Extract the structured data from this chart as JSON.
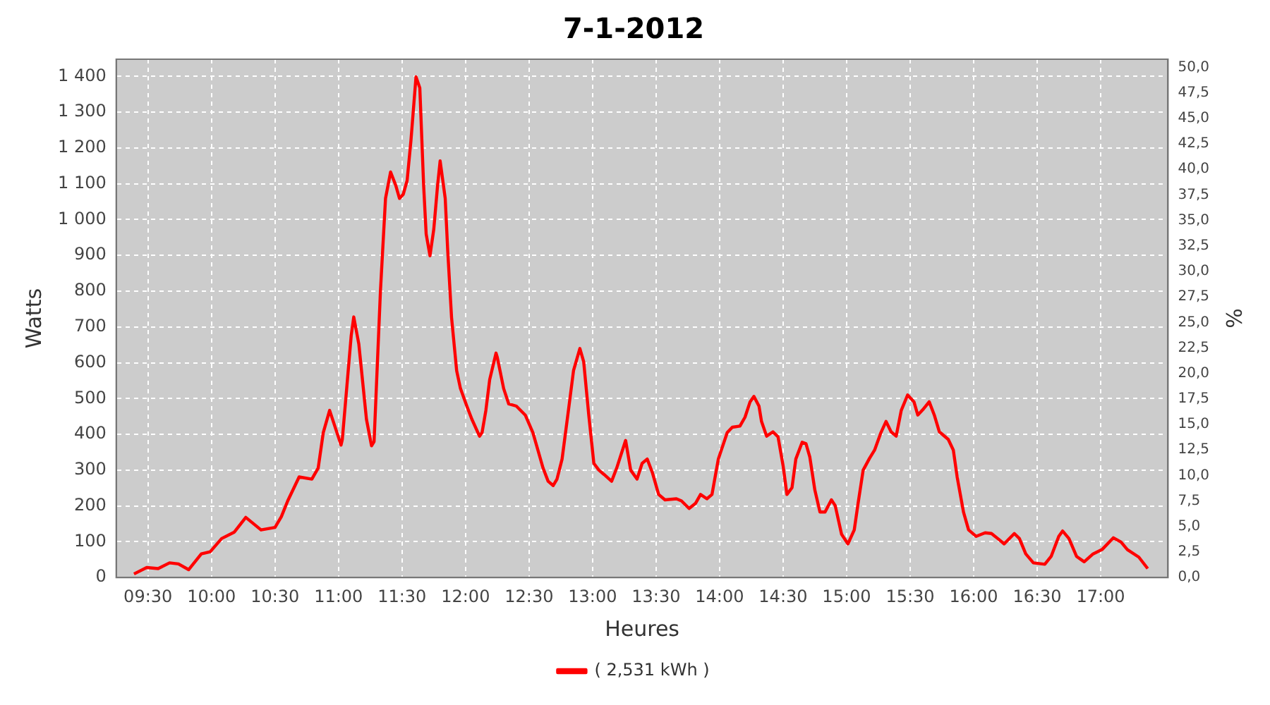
{
  "chart_data": {
    "type": "line",
    "title": "7-1-2012",
    "xlabel": "Heures",
    "ylabel": "Watts",
    "y2label": "%",
    "xlim": [
      9.25,
      17.53
    ],
    "xticks": [
      {
        "value": 9.5,
        "label": "09:30"
      },
      {
        "value": 10,
        "label": "10:00"
      },
      {
        "value": 10.5,
        "label": "10:30"
      },
      {
        "value": 11,
        "label": "11:00"
      },
      {
        "value": 11.5,
        "label": "11:30"
      },
      {
        "value": 12,
        "label": "12:00"
      },
      {
        "value": 12.5,
        "label": "12:30"
      },
      {
        "value": 13,
        "label": "13:00"
      },
      {
        "value": 13.5,
        "label": "13:30"
      },
      {
        "value": 14,
        "label": "14:00"
      },
      {
        "value": 14.5,
        "label": "14:30"
      },
      {
        "value": 15,
        "label": "15:00"
      },
      {
        "value": 15.5,
        "label": "15:30"
      },
      {
        "value": 16,
        "label": "16:00"
      },
      {
        "value": 16.5,
        "label": "16:30"
      },
      {
        "value": 17,
        "label": "17:00"
      }
    ],
    "ylim": [
      0,
      1448
    ],
    "yticks": [
      0,
      100,
      200,
      300,
      400,
      500,
      600,
      700,
      800,
      900,
      {
        "value": 1000,
        "label": "1 000"
      },
      {
        "value": 1100,
        "label": "1 100"
      },
      {
        "value": 1200,
        "label": "1 200"
      },
      {
        "value": 1300,
        "label": "1 300"
      },
      {
        "value": 1400,
        "label": "1 400"
      }
    ],
    "y2lim": [
      0,
      50.8
    ],
    "y2ticks": [
      {
        "value": 0,
        "label": "0,0"
      },
      {
        "value": 2.5,
        "label": "2,5"
      },
      {
        "value": 5,
        "label": "5,0"
      },
      {
        "value": 7.5,
        "label": "7,5"
      },
      {
        "value": 10,
        "label": "10,0"
      },
      {
        "value": 12.5,
        "label": "12,5"
      },
      {
        "value": 15,
        "label": "15,0"
      },
      {
        "value": 17.5,
        "label": "17,5"
      },
      {
        "value": 20,
        "label": "20,0"
      },
      {
        "value": 22.5,
        "label": "22,5"
      },
      {
        "value": 25,
        "label": "25,0"
      },
      {
        "value": 27.5,
        "label": "27,5"
      },
      {
        "value": 30,
        "label": "30,0"
      },
      {
        "value": 32.5,
        "label": "32,5"
      },
      {
        "value": 35,
        "label": "35,0"
      },
      {
        "value": 37.5,
        "label": "37,5"
      },
      {
        "value": 40,
        "label": "40,0"
      },
      {
        "value": 42.5,
        "label": "42,5"
      },
      {
        "value": 45,
        "label": "45,0"
      },
      {
        "value": 47.5,
        "label": "47,5"
      },
      {
        "value": 50,
        "label": "50,0"
      }
    ],
    "grid": true,
    "legend": "bottom",
    "marker": "none",
    "line_style": "solid",
    "series": [
      {
        "name": "( 2,531 kWh )",
        "color": "#ff0000",
        "x": [
          9.39,
          9.49,
          9.58,
          9.67,
          9.74,
          9.82,
          9.92,
          9.99,
          10.08,
          10.18,
          10.27,
          10.39,
          10.5,
          10.55,
          10.6,
          10.69,
          10.79,
          10.84,
          10.88,
          10.93,
          11.02,
          11.03,
          11.1,
          11.12,
          11.16,
          11.22,
          11.26,
          11.28,
          11.33,
          11.37,
          11.41,
          11.45,
          11.48,
          11.51,
          11.54,
          11.57,
          11.61,
          11.64,
          11.67,
          11.69,
          11.72,
          11.75,
          11.78,
          11.8,
          11.84,
          11.86,
          11.89,
          11.93,
          11.96,
          12.01,
          12.05,
          12.11,
          12.13,
          12.16,
          12.19,
          12.24,
          12.25,
          12.3,
          12.34,
          12.4,
          12.47,
          12.53,
          12.56,
          12.61,
          12.65,
          12.69,
          12.72,
          12.76,
          12.81,
          12.85,
          12.9,
          12.93,
          12.97,
          13.01,
          13.05,
          13.09,
          13.15,
          13.19,
          13.26,
          13.3,
          13.35,
          13.39,
          13.43,
          13.47,
          13.52,
          13.57,
          13.66,
          13.7,
          13.76,
          13.81,
          13.85,
          13.9,
          13.94,
          13.99,
          14.06,
          14.1,
          14.16,
          14.2,
          14.24,
          14.27,
          14.31,
          14.33,
          14.37,
          14.42,
          14.46,
          14.5,
          14.53,
          14.57,
          14.6,
          14.65,
          14.68,
          14.71,
          14.75,
          14.79,
          14.83,
          14.88,
          14.91,
          14.96,
          15.01,
          15.06,
          15.09,
          15.13,
          15.18,
          15.22,
          15.27,
          15.31,
          15.35,
          15.39,
          15.43,
          15.48,
          15.53,
          15.56,
          15.6,
          15.65,
          15.69,
          15.73,
          15.8,
          15.84,
          15.87,
          15.92,
          15.96,
          16.02,
          16.09,
          16.14,
          16.2,
          16.24,
          16.32,
          16.36,
          16.41,
          16.47,
          16.56,
          16.61,
          16.67,
          16.7,
          16.75,
          16.81,
          16.87,
          16.94,
          17.01,
          17.1,
          17.16,
          17.21,
          17.3,
          17.37
        ],
        "values": [
          10,
          28,
          25,
          41,
          38,
          22,
          66,
          72,
          109,
          127,
          168,
          133,
          140,
          170,
          214,
          281,
          275,
          306,
          405,
          467,
          370,
          386,
          676,
          728,
          652,
          442,
          368,
          380,
          800,
          1059,
          1133,
          1096,
          1059,
          1071,
          1109,
          1220,
          1399,
          1368,
          1096,
          960,
          899,
          973,
          1096,
          1164,
          1059,
          911,
          726,
          578,
          528,
          479,
          442,
          395,
          405,
          467,
          553,
          627,
          615,
          528,
          485,
          479,
          454,
          405,
          368,
          306,
          269,
          257,
          275,
          331,
          467,
          578,
          640,
          603,
          454,
          319,
          300,
          288,
          269,
          306,
          383,
          300,
          275,
          319,
          331,
          294,
          232,
          217,
          220,
          214,
          193,
          207,
          232,
          220,
          232,
          331,
          405,
          420,
          423,
          448,
          491,
          506,
          479,
          436,
          395,
          407,
          393,
          312,
          232,
          251,
          331,
          378,
          374,
          337,
          244,
          183,
          183,
          217,
          201,
          121,
          94,
          133,
          207,
          300,
          333,
          356,
          405,
          436,
          407,
          395,
          467,
          510,
          491,
          454,
          469,
          491,
          454,
          407,
          386,
          356,
          281,
          183,
          133,
          115,
          125,
          123,
          106,
          94,
          123,
          109,
          66,
          41,
          37,
          59,
          115,
          130,
          109,
          59,
          44,
          66,
          78,
          111,
          99,
          78,
          57,
          25
        ]
      }
    ]
  }
}
